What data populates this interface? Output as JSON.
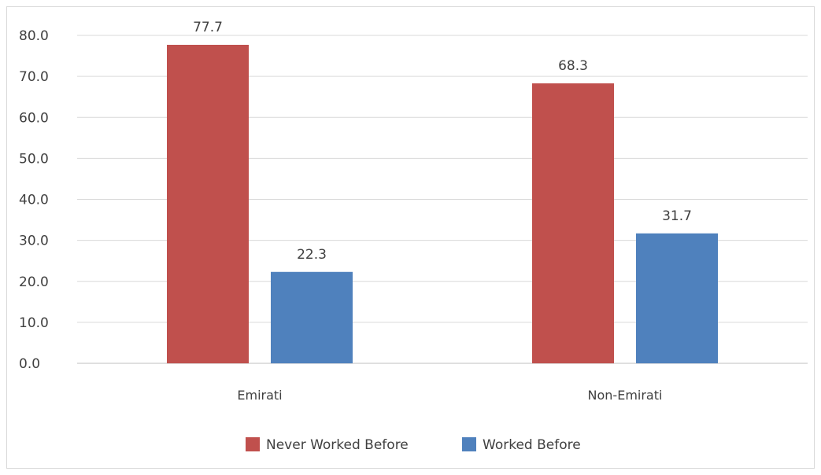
{
  "chart_data": {
    "type": "bar",
    "categories": [
      "Emirati",
      "Non-Emirati"
    ],
    "series": [
      {
        "name": "Never Worked Before",
        "values": [
          77.7,
          68.3
        ],
        "color": "#c0504d"
      },
      {
        "name": "Worked Before",
        "values": [
          22.3,
          31.7
        ],
        "color": "#4f81bd"
      }
    ],
    "ylim": [
      0,
      80
    ],
    "yticks": [
      "0.0",
      "10.0",
      "20.0",
      "30.0",
      "40.0",
      "50.0",
      "60.0",
      "70.0",
      "80.0"
    ],
    "data_labels": [
      [
        "77.7",
        "68.3"
      ],
      [
        "22.3",
        "31.7"
      ]
    ],
    "grid": true,
    "legend_position": "bottom",
    "title": "",
    "xlabel": "",
    "ylabel": ""
  }
}
